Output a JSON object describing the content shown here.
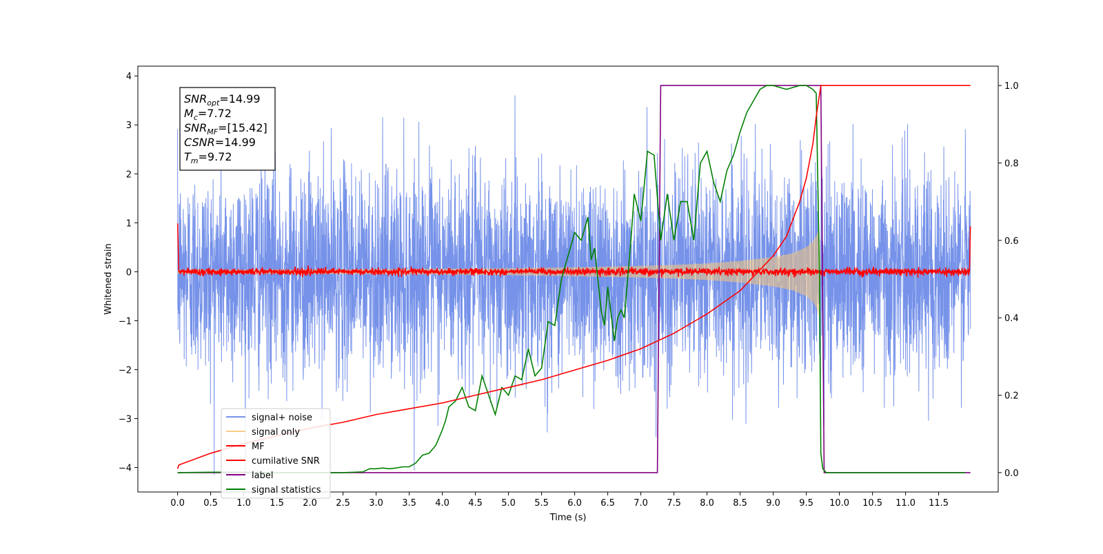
{
  "chart_data": {
    "type": "line",
    "xlabel": "Time (s)",
    "ylabel": "Whitened strain",
    "xlim": [
      -0.6,
      12.4
    ],
    "ylim_left": [
      -4.5,
      4.2
    ],
    "ylim_right": [
      -0.05,
      1.05
    ],
    "x_ticks": [
      0.0,
      0.5,
      1.0,
      1.5,
      2.0,
      2.5,
      3.0,
      3.5,
      4.0,
      4.5,
      5.0,
      5.5,
      6.0,
      6.5,
      7.0,
      7.5,
      8.0,
      8.5,
      9.0,
      9.5,
      10.0,
      10.5,
      11.0,
      11.5
    ],
    "x_tick_labels": [
      "0.0",
      "0.5",
      "1.0",
      "1.5",
      "2.0",
      "2.5",
      "3.0",
      "3.5",
      "4.0",
      "4.5",
      "5.0",
      "5.5",
      "6.0",
      "6.5",
      "7.0",
      "7.5",
      "8.0",
      "8.5",
      "9.0",
      "9.5",
      "10.0",
      "10.5",
      "11.0",
      "11.5"
    ],
    "y_left_ticks": [
      -4,
      -3,
      -2,
      -1,
      0,
      1,
      2,
      3,
      4
    ],
    "y_left_tick_labels": [
      "−4",
      "−3",
      "−2",
      "−1",
      "0",
      "1",
      "2",
      "3",
      "4"
    ],
    "y_right_ticks": [
      0.0,
      0.2,
      0.4,
      0.6,
      0.8,
      1.0
    ],
    "y_right_tick_labels": [
      "0.0",
      "0.2",
      "0.4",
      "0.6",
      "0.8",
      "1.0"
    ],
    "grid": false,
    "legend_position": "lower-left",
    "annotation": {
      "lines": [
        {
          "base": "SNR",
          "sub": "opt",
          "value": "=14.99"
        },
        {
          "base": "M",
          "sub": "c",
          "value": "=7.72"
        },
        {
          "base": "SNR",
          "sub": "MF",
          "value": "=[15.42]"
        },
        {
          "base": "CSNR",
          "sub": "",
          "value": "=14.99"
        },
        {
          "base": "T",
          "sub": "m",
          "value": "=9.72"
        }
      ]
    },
    "series": [
      {
        "name": "signal+ noise",
        "axis": "left",
        "color": "#6f8ce8",
        "kind": "noise",
        "x_range": [
          0,
          11.98
        ],
        "std": 1.05,
        "peak_max": 3.7,
        "peak_min": -4.15
      },
      {
        "name": "signal only",
        "axis": "left",
        "color": "#f5c77a",
        "kind": "chirp-envelope",
        "x_range": [
          0,
          9.72
        ],
        "envelope": {
          "x": [
            0,
            3,
            5,
            6,
            7,
            7.5,
            8,
            8.5,
            9.0,
            9.3,
            9.5,
            9.6,
            9.66,
            9.7,
            9.72
          ],
          "amp": [
            0.04,
            0.05,
            0.07,
            0.09,
            0.12,
            0.14,
            0.17,
            0.22,
            0.3,
            0.38,
            0.5,
            0.62,
            0.75,
            0.95,
            0.0
          ]
        }
      },
      {
        "name": "MF",
        "axis": "left",
        "color": "#ff0000",
        "kind": "mf",
        "x_range": [
          0,
          11.98
        ],
        "start": 1.0,
        "end": 0.88,
        "noise_std": 0.035
      },
      {
        "name": "cumilative SNR",
        "axis": "right",
        "color": "#ff0000",
        "points": {
          "x": [
            0.0,
            0.02,
            0.5,
            1.0,
            1.5,
            2.0,
            2.5,
            3.0,
            3.5,
            4.0,
            4.5,
            5.0,
            5.5,
            6.0,
            6.5,
            7.0,
            7.5,
            8.0,
            8.5,
            9.0,
            9.2,
            9.4,
            9.5,
            9.6,
            9.65,
            9.72,
            11.98
          ],
          "y": [
            0.01,
            0.02,
            0.05,
            0.075,
            0.095,
            0.115,
            0.13,
            0.15,
            0.165,
            0.18,
            0.2,
            0.22,
            0.24,
            0.265,
            0.29,
            0.32,
            0.36,
            0.41,
            0.47,
            0.56,
            0.61,
            0.7,
            0.76,
            0.85,
            0.92,
            1.0,
            1.0
          ]
        }
      },
      {
        "name": "label",
        "axis": "right",
        "color": "#800080",
        "points": {
          "x": [
            0.0,
            7.25,
            7.3,
            9.72,
            9.77,
            11.98
          ],
          "y": [
            0.0,
            0.0,
            1.0,
            1.0,
            0.0,
            0.0
          ]
        }
      },
      {
        "name": "signal statistics",
        "axis": "right",
        "color": "#008000",
        "points": {
          "x": [
            0.0,
            0.5,
            1.0,
            1.5,
            2.0,
            2.5,
            2.8,
            2.9,
            3.0,
            3.1,
            3.2,
            3.3,
            3.4,
            3.5,
            3.6,
            3.7,
            3.8,
            3.9,
            4.0,
            4.05,
            4.1,
            4.2,
            4.3,
            4.4,
            4.5,
            4.6,
            4.7,
            4.8,
            4.9,
            5.0,
            5.1,
            5.2,
            5.3,
            5.4,
            5.5,
            5.6,
            5.7,
            5.8,
            5.9,
            6.0,
            6.1,
            6.2,
            6.25,
            6.3,
            6.4,
            6.45,
            6.5,
            6.6,
            6.65,
            6.7,
            6.75,
            6.8,
            6.85,
            6.9,
            7.0,
            7.1,
            7.2,
            7.3,
            7.4,
            7.45,
            7.5,
            7.6,
            7.7,
            7.8,
            7.9,
            8.0,
            8.1,
            8.2,
            8.3,
            8.4,
            8.5,
            8.6,
            8.7,
            8.8,
            8.9,
            9.0,
            9.2,
            9.4,
            9.5,
            9.6,
            9.65,
            9.7,
            9.72,
            9.75,
            9.8,
            9.85,
            9.9,
            10.0,
            11.0,
            11.9
          ],
          "y": [
            0.0,
            0.001,
            0.001,
            0.0,
            0.0,
            0.0,
            0.002,
            0.01,
            0.01,
            0.012,
            0.01,
            0.012,
            0.015,
            0.015,
            0.025,
            0.045,
            0.05,
            0.07,
            0.11,
            0.135,
            0.17,
            0.185,
            0.22,
            0.17,
            0.16,
            0.25,
            0.2,
            0.15,
            0.22,
            0.2,
            0.25,
            0.24,
            0.32,
            0.25,
            0.27,
            0.39,
            0.38,
            0.5,
            0.56,
            0.62,
            0.6,
            0.66,
            0.55,
            0.58,
            0.42,
            0.38,
            0.48,
            0.34,
            0.4,
            0.42,
            0.4,
            0.5,
            0.6,
            0.72,
            0.65,
            0.83,
            0.82,
            0.6,
            0.72,
            0.66,
            0.6,
            0.7,
            0.7,
            0.6,
            0.8,
            0.83,
            0.75,
            0.7,
            0.78,
            0.82,
            0.88,
            0.93,
            0.96,
            0.99,
            1.0,
            1.0,
            0.99,
            1.0,
            1.0,
            0.99,
            0.98,
            0.5,
            0.05,
            0.01,
            0.0,
            0.0,
            0.0,
            0.0,
            0.0,
            0.0
          ]
        }
      }
    ]
  }
}
